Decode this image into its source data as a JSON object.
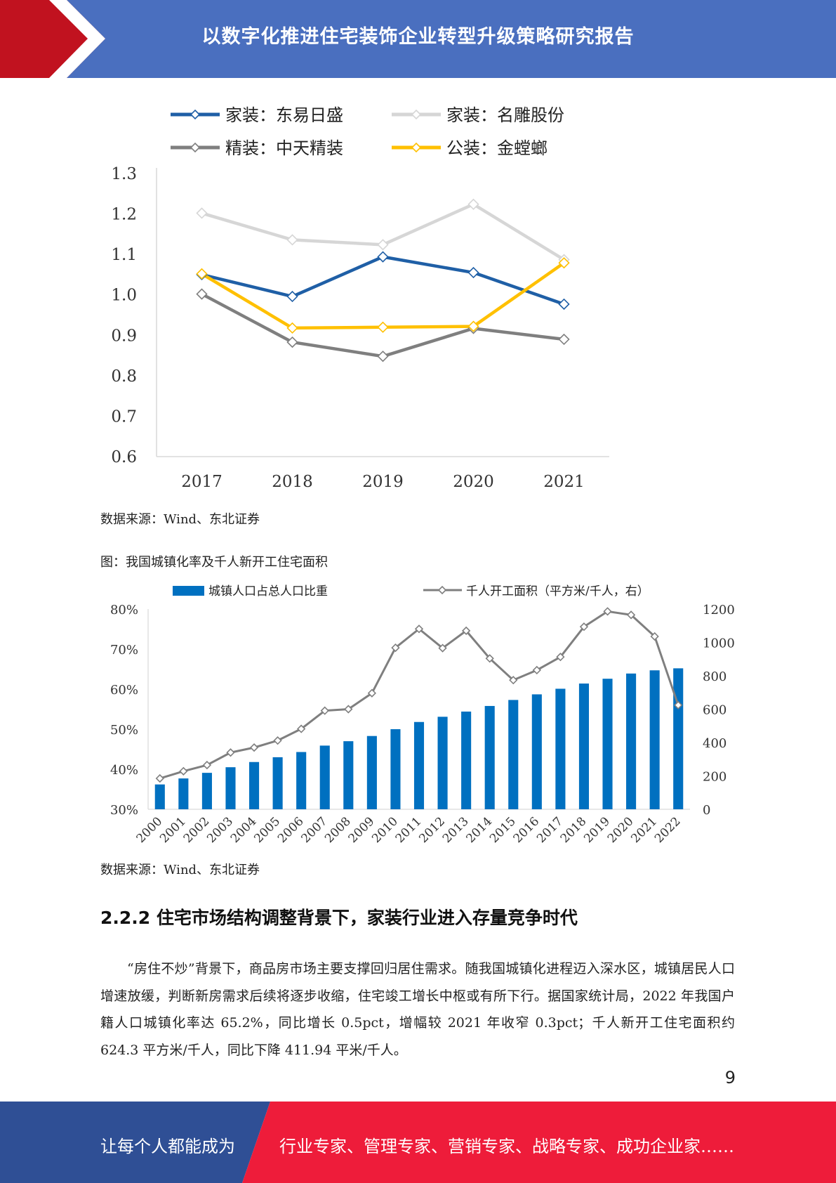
{
  "header": {
    "title": "以数字化推进住宅装饰企业转型升级策略研究报告",
    "accent_red": "#c1121f",
    "accent_blue": "#4a6fbf"
  },
  "chart_data": [
    {
      "type": "line",
      "x": [
        "2017",
        "2018",
        "2019",
        "2020",
        "2021"
      ],
      "ylim": [
        0.6,
        1.3
      ],
      "yticks": [
        "0.6",
        "0.7",
        "0.8",
        "0.9",
        "1.0",
        "1.1",
        "1.2",
        "1.3"
      ],
      "grid": false,
      "legend_position": "top",
      "series": [
        {
          "name": "家装：东易日盛",
          "values": [
            1.05,
            0.996,
            1.094,
            1.055,
            0.977
          ],
          "color": "#1f5fa6"
        },
        {
          "name": "家装：名雕股份",
          "values": [
            1.202,
            1.136,
            1.124,
            1.224,
            1.087
          ],
          "color": "#d6d6d6"
        },
        {
          "name": "精装：中天精装",
          "values": [
            1.002,
            0.883,
            0.848,
            0.917,
            0.89
          ],
          "color": "#7f7f7f"
        },
        {
          "name": "公装：金螳螂",
          "values": [
            1.052,
            0.918,
            0.92,
            0.922,
            1.079
          ],
          "color": "#ffc000"
        }
      ]
    },
    {
      "type": "bar",
      "title": "图：我国城镇化率及千人新开工住宅面积",
      "categories": [
        "2000",
        "2001",
        "2002",
        "2003",
        "2004",
        "2005",
        "2006",
        "2007",
        "2008",
        "2009",
        "2010",
        "2011",
        "2012",
        "2013",
        "2014",
        "2015",
        "2016",
        "2017",
        "2018",
        "2019",
        "2020",
        "2021",
        "2022"
      ],
      "ylim": [
        0.3,
        0.8
      ],
      "yticks": [
        "30%",
        "40%",
        "50%",
        "60%",
        "70%",
        "80%"
      ],
      "y2lim": [
        0,
        1200
      ],
      "y2ticks": [
        "0",
        "200",
        "400",
        "600",
        "800",
        "1000",
        "1200"
      ],
      "legend_position": "top",
      "series": [
        {
          "name": "城镇人口占总人口比重",
          "type": "bar",
          "axis": "left",
          "color": "#0070c0",
          "values": [
            0.362,
            0.377,
            0.391,
            0.405,
            0.418,
            0.43,
            0.443,
            0.459,
            0.47,
            0.483,
            0.5,
            0.518,
            0.531,
            0.544,
            0.558,
            0.573,
            0.587,
            0.601,
            0.614,
            0.626,
            0.639,
            0.647,
            0.652
          ]
        },
        {
          "name": "千人开工面积（平方米/千人，右）",
          "type": "line",
          "axis": "right",
          "color": "#7f7f7f",
          "values": [
            185,
            228,
            265,
            340,
            370,
            412,
            482,
            591,
            600,
            696,
            968,
            1081,
            966,
            1070,
            904,
            774,
            834,
            913,
            1094,
            1186,
            1165,
            1036,
            624
          ]
        }
      ]
    }
  ],
  "sources": {
    "chart1": "数据来源：Wind、东北证券",
    "chart2": "数据来源：Wind、东北证券"
  },
  "section": {
    "heading": "2.2.2 住宅市场结构调整背景下，家装行业进入存量竞争时代",
    "paragraph": "“房住不炒”背景下，商品房市场主要支撑回归居住需求。随我国城镇化进程迈入深水区，城镇居民人口增速放缓，判断新房需求后续将逐步收缩，住宅竣工增长中枢或有所下行。据国家统计局，2022 年我国户籍人口城镇化率达 65.2%，同比增长 0.5pct，增幅较 2021 年收窄 0.3pct；千人新开工住宅面积约 624.3 平方米/千人，同比下降 411.94 平米/千人。"
  },
  "page_number": "9",
  "footer": {
    "left": "让每个人都能成为",
    "right": "行业专家、管理专家、营销专家、战略专家、成功企业家……",
    "left_color": "#2f4f95",
    "right_color": "#ee1c3a"
  }
}
